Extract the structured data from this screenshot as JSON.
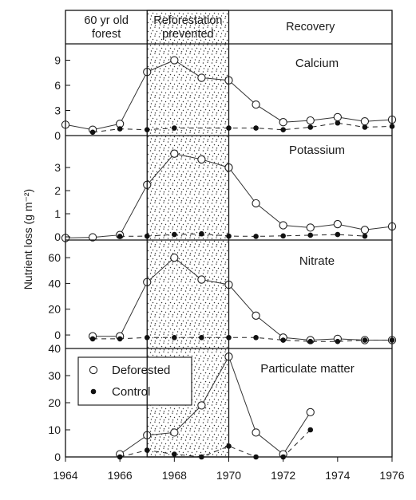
{
  "chart_data": {
    "type": "line",
    "ylabel": "Nutrient loss (g m⁻²)",
    "x_axis": {
      "range": [
        1964,
        1976
      ],
      "ticks": [
        1964,
        1966,
        1968,
        1970,
        1972,
        1974,
        1976
      ],
      "tick_labels": [
        "1964",
        "1966",
        "1968",
        "1970",
        "1972",
        "1974",
        "1976"
      ]
    },
    "phases": [
      {
        "label_lines": [
          "60 yr old",
          "forest"
        ],
        "x_range": [
          1964,
          1967
        ]
      },
      {
        "label_lines": [
          "Reforestation",
          "prevented"
        ],
        "x_range": [
          1967,
          1970
        ],
        "shaded": true
      },
      {
        "label_lines": [
          "Recovery"
        ],
        "x_range": [
          1970,
          1976
        ]
      }
    ],
    "legend": {
      "placement": "upper-left of bottom panel",
      "entries": [
        {
          "label": "Deforested",
          "marker": "open-circle",
          "line": "solid"
        },
        {
          "label": "Control",
          "marker": "filled-circle",
          "line": "dashed"
        }
      ]
    },
    "panels": [
      {
        "title": "Calcium",
        "ylim": [
          0,
          10
        ],
        "yticks": [
          0,
          3,
          6,
          9
        ],
        "series": [
          {
            "name": "Deforested",
            "x": [
              1964,
              1965,
              1966,
              1967,
              1968,
              1969,
              1970,
              1971,
              1972,
              1973,
              1974,
              1975,
              1976
            ],
            "y": [
              1.3,
              0.7,
              1.4,
              7.6,
              9.0,
              6.9,
              6.6,
              3.7,
              1.6,
              1.8,
              2.2,
              1.7,
              1.9
            ]
          },
          {
            "name": "Control",
            "x": [
              1965,
              1966,
              1967,
              1968,
              1970,
              1971,
              1972,
              1973,
              1974,
              1975,
              1976
            ],
            "y": [
              0.4,
              0.8,
              0.7,
              0.9,
              0.9,
              0.9,
              0.7,
              1.0,
              1.5,
              1.0,
              1.1
            ]
          }
        ]
      },
      {
        "title": "Potassium",
        "ylim": [
          0,
          3.9
        ],
        "yticks": [
          0,
          1,
          2,
          3
        ],
        "series": [
          {
            "name": "Deforested",
            "x": [
              1964,
              1965,
              1966,
              1967,
              1968,
              1969,
              1970,
              1971,
              1972,
              1973,
              1974,
              1975,
              1976
            ],
            "y": [
              -0.05,
              -0.02,
              0.08,
              2.25,
              3.6,
              3.35,
              3.0,
              1.45,
              0.5,
              0.4,
              0.55,
              0.3,
              0.45
            ]
          },
          {
            "name": "Control",
            "x": [
              1966,
              1967,
              1968,
              1969,
              1970,
              1971,
              1972,
              1973,
              1974,
              1975
            ],
            "y": [
              0.02,
              0.03,
              0.1,
              0.13,
              0.03,
              0.02,
              0.04,
              0.07,
              0.1,
              0.03
            ]
          }
        ]
      },
      {
        "title": "Nitrate",
        "ylim": [
          -8,
          65
        ],
        "yticks": [
          0,
          20,
          40,
          60
        ],
        "series": [
          {
            "name": "Deforested",
            "x": [
              1965,
              1966,
              1967,
              1968,
              1969,
              1970,
              1971,
              1972,
              1973,
              1974,
              1975,
              1976
            ],
            "y": [
              -1,
              -1,
              41,
              60,
              43,
              39,
              15,
              -2,
              -4,
              -3,
              -4,
              -4
            ]
          },
          {
            "name": "Control",
            "x": [
              1965,
              1966,
              1967,
              1968,
              1969,
              1970,
              1971,
              1972,
              1973,
              1974,
              1975,
              1976
            ],
            "y": [
              -3,
              -3,
              -2,
              -2,
              -2,
              -2,
              -2,
              -4,
              -5,
              -5,
              -4,
              -4
            ]
          }
        ]
      },
      {
        "title": "Particulate matter",
        "ylim": [
          0,
          40
        ],
        "yticks": [
          0,
          10,
          20,
          30,
          40
        ],
        "series": [
          {
            "name": "Deforested",
            "x": [
              1966,
              1967,
              1968,
              1969,
              1970,
              1971,
              1972,
              1973
            ],
            "y": [
              1,
              8,
              9,
              19,
              37,
              9,
              1,
              16.5
            ]
          },
          {
            "name": "Control",
            "x": [
              1966,
              1967,
              1968,
              1969,
              1970,
              1971,
              1972,
              1973
            ],
            "y": [
              0,
              2.5,
              1,
              0,
              4,
              0,
              0,
              10
            ]
          }
        ]
      }
    ]
  }
}
